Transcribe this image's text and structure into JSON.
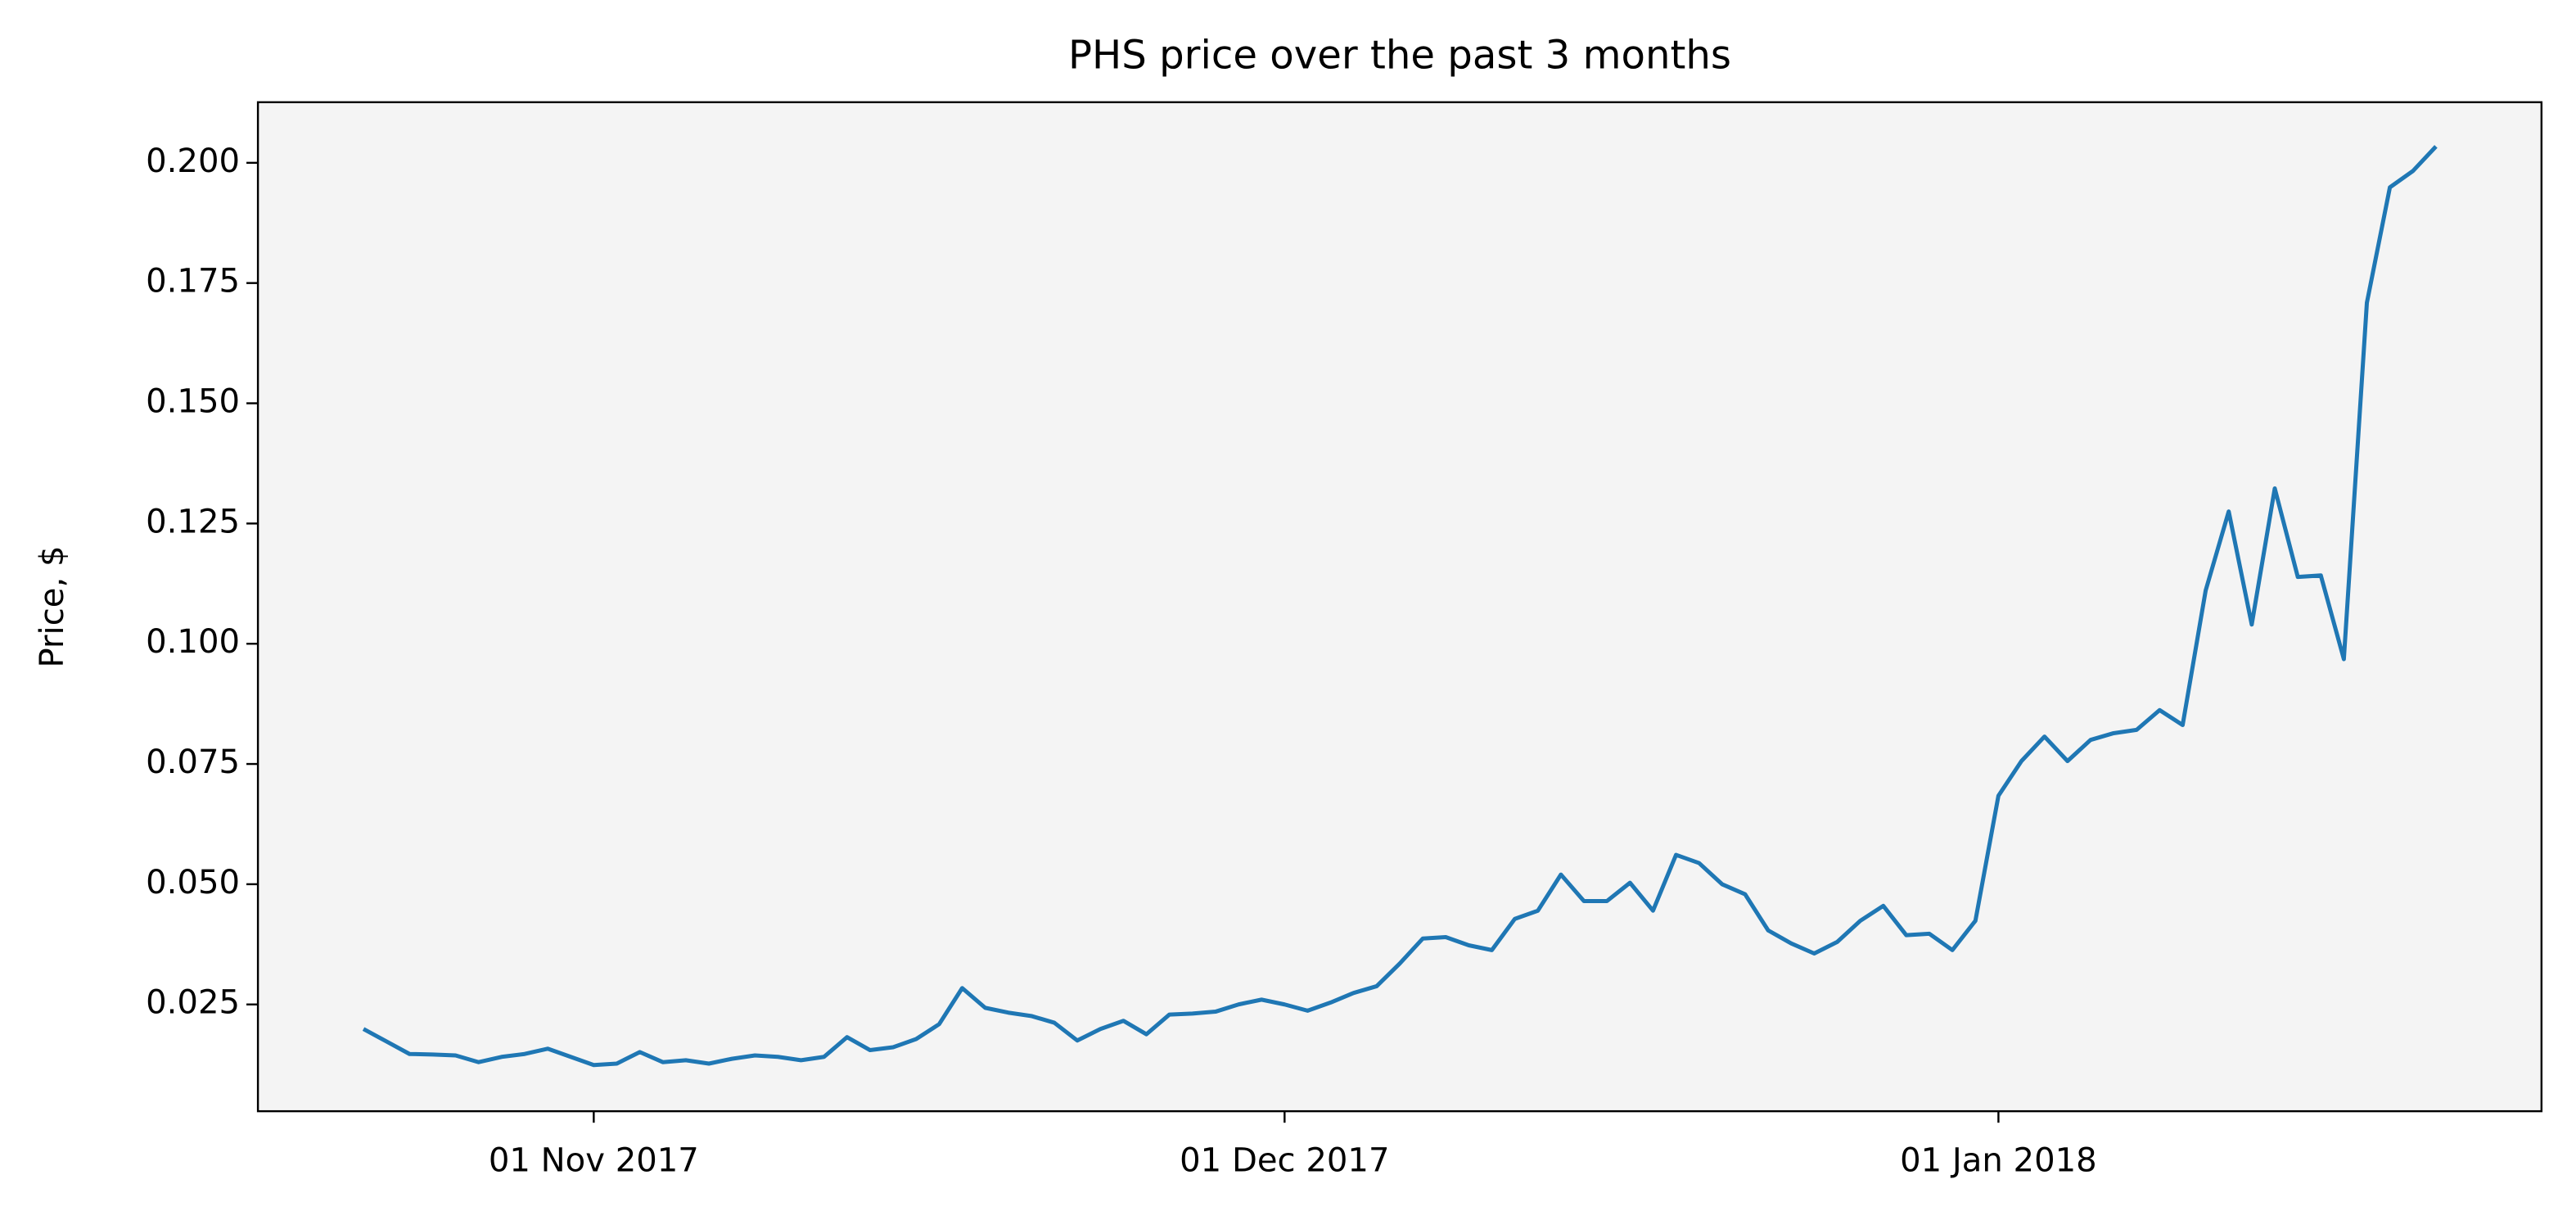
{
  "chart_data": {
    "type": "line",
    "title": "PHS price over the past 3 months",
    "ylabel": "Price, $",
    "x": [
      "2017-10-22",
      "2017-10-23",
      "2017-10-24",
      "2017-10-25",
      "2017-10-26",
      "2017-10-27",
      "2017-10-28",
      "2017-10-29",
      "2017-10-30",
      "2017-10-31",
      "2017-11-01",
      "2017-11-02",
      "2017-11-03",
      "2017-11-04",
      "2017-11-05",
      "2017-11-06",
      "2017-11-07",
      "2017-11-08",
      "2017-11-09",
      "2017-11-10",
      "2017-11-11",
      "2017-11-12",
      "2017-11-13",
      "2017-11-14",
      "2017-11-15",
      "2017-11-16",
      "2017-11-17",
      "2017-11-18",
      "2017-11-19",
      "2017-11-20",
      "2017-11-21",
      "2017-11-22",
      "2017-11-23",
      "2017-11-24",
      "2017-11-25",
      "2017-11-26",
      "2017-11-27",
      "2017-11-28",
      "2017-11-29",
      "2017-11-30",
      "2017-12-01",
      "2017-12-02",
      "2017-12-03",
      "2017-12-04",
      "2017-12-05",
      "2017-12-06",
      "2017-12-07",
      "2017-12-08",
      "2017-12-09",
      "2017-12-10",
      "2017-12-11",
      "2017-12-12",
      "2017-12-13",
      "2017-12-14",
      "2017-12-15",
      "2017-12-16",
      "2017-12-17",
      "2017-12-18",
      "2017-12-19",
      "2017-12-20",
      "2017-12-21",
      "2017-12-22",
      "2017-12-23",
      "2017-12-24",
      "2017-12-25",
      "2017-12-26",
      "2017-12-27",
      "2017-12-28",
      "2017-12-29",
      "2017-12-30",
      "2017-12-31",
      "2018-01-01",
      "2018-01-02",
      "2018-01-03",
      "2018-01-04",
      "2018-01-05",
      "2018-01-06",
      "2018-01-07",
      "2018-01-08",
      "2018-01-09",
      "2018-01-10",
      "2018-01-11",
      "2018-01-12",
      "2018-01-13",
      "2018-01-14",
      "2018-01-15",
      "2018-01-16",
      "2018-01-17",
      "2018-01-18",
      "2018-01-19",
      "2018-01-20"
    ],
    "series": [
      {
        "name": "PHS",
        "color": "#1f77b4",
        "values": [
          0.0199,
          0.0173,
          0.0147,
          0.0146,
          0.0144,
          0.013,
          0.0141,
          0.0147,
          0.0158,
          0.0141,
          0.0124,
          0.0127,
          0.0151,
          0.013,
          0.0134,
          0.0127,
          0.0137,
          0.0144,
          0.0141,
          0.0134,
          0.0141,
          0.0182,
          0.0155,
          0.0161,
          0.0178,
          0.0209,
          0.0284,
          0.0243,
          0.0233,
          0.0226,
          0.0212,
          0.0175,
          0.0199,
          0.0216,
          0.0188,
          0.0229,
          0.0231,
          0.0235,
          0.025,
          0.026,
          0.025,
          0.0237,
          0.0254,
          0.0274,
          0.0288,
          0.0335,
          0.0387,
          0.039,
          0.0373,
          0.0363,
          0.0428,
          0.0445,
          0.052,
          0.0465,
          0.0465,
          0.0503,
          0.0445,
          0.0561,
          0.0544,
          0.05,
          0.0479,
          0.0404,
          0.0377,
          0.0356,
          0.038,
          0.0424,
          0.0455,
          0.0394,
          0.0397,
          0.0363,
          0.0424,
          0.0684,
          0.0756,
          0.0807,
          0.0756,
          0.08,
          0.0814,
          0.0821,
          0.0862,
          0.0831,
          0.1111,
          0.1275,
          0.104,
          0.1323,
          0.1139,
          0.1142,
          0.0968,
          0.1709,
          0.1949,
          0.1983,
          0.2034
        ]
      }
    ],
    "xlim": [
      "2017-10-17T10:00Z",
      "2018-01-24T14:00Z"
    ],
    "xticks": [
      {
        "value": "2017-11-01",
        "label": "01 Nov 2017"
      },
      {
        "value": "2017-12-01",
        "label": "01 Dec 2017"
      },
      {
        "value": "2018-01-01",
        "label": "01 Jan 2018"
      }
    ],
    "ylim": [
      0.0028,
      0.2126
    ],
    "yticks": [
      0.025,
      {
        "value": 0.05,
        "label": "0.050"
      },
      0.075,
      {
        "value": 0.1,
        "label": "0.100"
      },
      0.125,
      {
        "value": 0.15,
        "label": "0.150"
      },
      0.175,
      {
        "value": 0.2,
        "label": "0.200"
      }
    ],
    "background": "#f4f4f4"
  }
}
